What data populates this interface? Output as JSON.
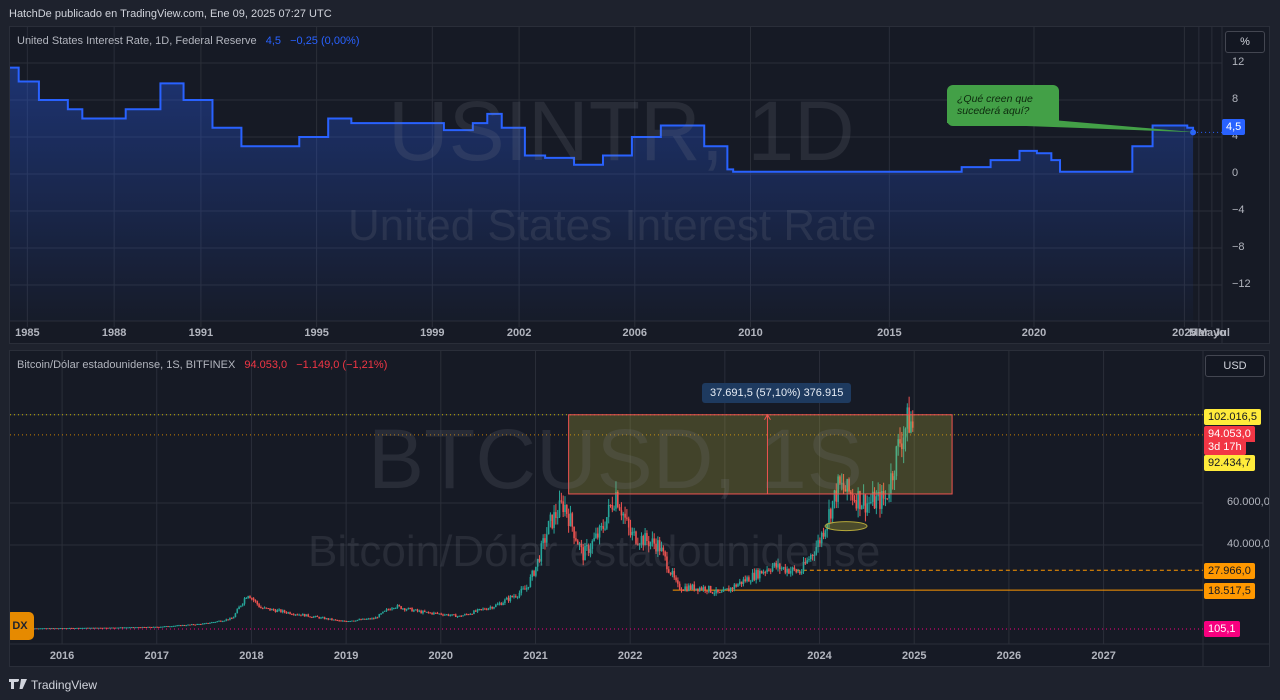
{
  "header": {
    "text": "HatchDe publicado en TradingView.com, Ene 09, 2025 07:27 UTC"
  },
  "pane1": {
    "legend_name": "United States Interest Rate, 1D, Federal Reserve",
    "legend_value": "4,5",
    "legend_change": "−0,25 (0,00%)",
    "unit": "%",
    "watermark_symbol": "USINTR, 1D",
    "watermark_name": "United States Interest Rate",
    "last_value_tag": "4,5",
    "yaxis": [
      "12",
      "8",
      "4",
      "0",
      "−4",
      "−8",
      "−12"
    ],
    "xaxis": [
      "1985",
      "1988",
      "1991",
      "1995",
      "1999",
      "2002",
      "2006",
      "2010",
      "2015",
      "2020",
      "2025",
      "Mar",
      "Mayo",
      "Jul"
    ],
    "callout": "¿Qué creen que sucederá aquí?"
  },
  "pane2": {
    "legend_name": "Bitcoin/Dólar estadounidense, 1S, BITFINEX",
    "legend_value": "94.053,0",
    "legend_change": "−1.149,0 (−1,21%)",
    "unit": "USD",
    "watermark_symbol": "BTCUSD, 1S",
    "watermark_name": "Bitcoin/Dólar estadounidense",
    "measure_label": "37.691,5 (57,10%) 376.915",
    "tags": {
      "high": "102.016,5",
      "last_price": "94.053,0",
      "countdown": "3d 17h",
      "low": "92.434,7",
      "l1": "27.966,0",
      "l2": "18.517,5",
      "dx": "105,1"
    },
    "yaxis": [
      "60.000,0",
      "40.000,0"
    ],
    "xaxis": [
      "2016",
      "2017",
      "2018",
      "2019",
      "2020",
      "2021",
      "2022",
      "2023",
      "2024",
      "2025",
      "2026",
      "2027"
    ],
    "dx_badge": "DX"
  },
  "footer": {
    "brand": "TradingView"
  },
  "colors": {
    "rate_line": "#2962ff",
    "up": "#26a69a",
    "down": "#ef5350",
    "box_fill": "rgba(200,190,60,0.25)",
    "tag_yellow": "#ffeb3b",
    "tag_red": "#f23645",
    "tag_orange": "#ff9800",
    "tag_pink": "#f7007f"
  },
  "chart_data": [
    {
      "type": "area",
      "series": [
        {
          "name": "United States Interest Rate",
          "x": [
            1984.0,
            1984.3,
            1985.0,
            1986.0,
            1986.5,
            1987.5,
            1988.0,
            1989.2,
            1990.0,
            1991.0,
            1992.0,
            1993.0,
            1994.0,
            1995.0,
            1995.8,
            1997.0,
            1998.5,
            1999.0,
            2000.0,
            2000.5,
            2001.0,
            2001.8,
            2002.5,
            2003.5,
            2004.5,
            2005.5,
            2006.5,
            2007.5,
            2008.0,
            2008.8,
            2009.0,
            2012.0,
            2015.9,
            2016.9,
            2017.9,
            2018.9,
            2019.5,
            2020.0,
            2020.3,
            2022.2,
            2022.8,
            2023.5,
            2024.7,
            2024.9
          ],
          "values": [
            11.5,
            10.0,
            8.0,
            7.0,
            6.0,
            6.0,
            7.0,
            9.8,
            8.0,
            5.0,
            3.0,
            3.0,
            4.0,
            6.0,
            5.5,
            5.5,
            5.5,
            4.75,
            5.5,
            6.5,
            5.0,
            2.0,
            1.75,
            1.0,
            2.0,
            4.0,
            5.25,
            5.25,
            3.0,
            0.5,
            0.25,
            0.25,
            0.25,
            0.75,
            1.5,
            2.5,
            2.25,
            1.5,
            0.25,
            0.25,
            3.0,
            5.25,
            5.0,
            4.5
          ]
        }
      ],
      "ylim": [
        -14,
        13
      ],
      "xlim": [
        1984.0,
        2025.9
      ]
    },
    {
      "type": "candlestick",
      "series": [
        {
          "name": "Bitcoin/Dólar estadounidense",
          "x": [
            2015.6,
            2016.0,
            2016.5,
            2017.0,
            2017.5,
            2017.8,
            2017.96,
            2018.1,
            2018.5,
            2018.95,
            2019.3,
            2019.5,
            2019.8,
            2020.0,
            2020.2,
            2020.6,
            2020.9,
            2021.0,
            2021.15,
            2021.3,
            2021.5,
            2021.7,
            2021.85,
            2022.0,
            2022.3,
            2022.5,
            2022.8,
            2022.95,
            2023.2,
            2023.5,
            2023.8,
            2024.0,
            2024.2,
            2024.5,
            2024.7,
            2024.85,
            2024.95,
            2025.0
          ],
          "values": [
            300,
            430,
            650,
            1000,
            2500,
            5000,
            17000,
            10000,
            7000,
            3700,
            5000,
            11000,
            8000,
            7200,
            6000,
            11500,
            19000,
            29000,
            50000,
            60000,
            35000,
            47000,
            65000,
            45000,
            40000,
            20000,
            19500,
            16500,
            23000,
            30000,
            27000,
            42000,
            68000,
            60000,
            62000,
            90000,
            100000,
            94053
          ]
        }
      ],
      "ylim": [
        0,
        125000
      ],
      "xlim": [
        2015.45,
        2028.05
      ]
    }
  ]
}
